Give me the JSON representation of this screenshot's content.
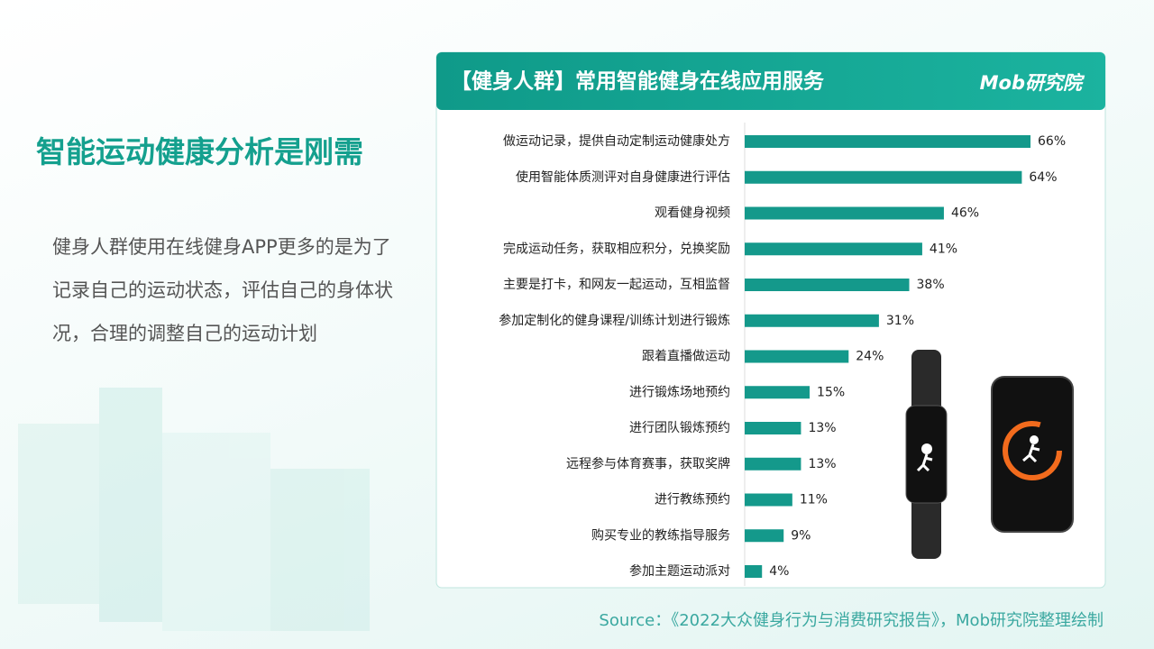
{
  "title": "智能运动健康分析是刚需",
  "description": "健身人群使用在线健身APP更多的是为了记录自己的运动状态，评估自己的身体状况，合理的调整自己的运动计划",
  "source": "Source：《2022大众健身行为与消费研究报告》，Mob研究院整理绘制",
  "chart_data": {
    "type": "bar",
    "orientation": "horizontal",
    "title": "【健身人群】常用智能健身在线应用服务",
    "logo": "Mob研究院",
    "categories": [
      "做运动记录，提供自动定制运动健康处方",
      "使用智能体质测评对自身健康进行评估",
      "观看健身视频",
      "完成运动任务，获取相应积分，兑换奖励",
      "主要是打卡，和网友一起运动，互相监督",
      "参加定制化的健身课程/训练计划进行锻炼",
      "跟着直播做运动",
      "进行锻炼场地预约",
      "进行团队锻炼预约",
      "远程参与体育赛事，获取奖牌",
      "进行教练预约",
      "购买专业的教练指导服务",
      "参加主题运动派对"
    ],
    "values": [
      66,
      64,
      46,
      41,
      38,
      31,
      24,
      15,
      13,
      13,
      11,
      9,
      4
    ],
    "value_labels": [
      "66%",
      "64%",
      "46%",
      "41%",
      "38%",
      "31%",
      "24%",
      "15%",
      "13%",
      "13%",
      "11%",
      "9%",
      "4%"
    ],
    "color": "#14998b"
  }
}
